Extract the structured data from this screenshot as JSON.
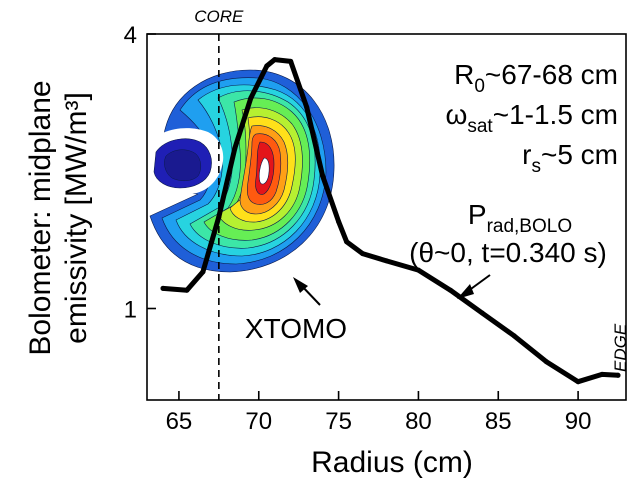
{
  "chart_data": {
    "type": "line",
    "title": "",
    "xlabel": "Radius (cm)",
    "ylabel_line1": "Bolometer: midplane",
    "ylabel_line2": "emissivity [MW/m³]",
    "xlim": [
      63,
      93
    ],
    "ylim": [
      0,
      4
    ],
    "x_ticks": [
      65,
      70,
      75,
      80,
      85,
      90
    ],
    "x_tick_labels": [
      "65",
      "70",
      "75",
      "80",
      "85",
      "90"
    ],
    "y_ticks": [
      1,
      4
    ],
    "y_tick_labels": [
      "1",
      "4"
    ],
    "grid": false,
    "core_x": 67.5,
    "core_label": "CORE",
    "edge_label": "EDGE",
    "series": [
      {
        "name": "P_rad,BOLO",
        "x": [
          64.0,
          65.5,
          66.5,
          67.5,
          68.5,
          69.5,
          70.5,
          71.0,
          72.0,
          73.0,
          74.0,
          75.0,
          75.5,
          76.5,
          78.0,
          80.0,
          82.0,
          84.0,
          86.0,
          88.0,
          90.0,
          91.5,
          92.5
        ],
        "y": [
          1.22,
          1.2,
          1.4,
          2.0,
          2.75,
          3.3,
          3.65,
          3.72,
          3.7,
          3.2,
          2.45,
          1.95,
          1.73,
          1.6,
          1.52,
          1.42,
          1.2,
          0.95,
          0.7,
          0.42,
          0.2,
          0.28,
          0.27
        ]
      }
    ],
    "annotations": {
      "r0_main": "R",
      "r0_sub": "0",
      "r0_rest": "~67-68 cm",
      "omega_main": "ω",
      "omega_sub": "sat",
      "omega_rest": "~1-1.5 cm",
      "rs_main": "r",
      "rs_sub": "s",
      "rs_rest": "~5 cm",
      "prad_main": "P",
      "prad_sub": "rad,BOLO",
      "prad_cond": "(θ~0, t=0.340 s)",
      "xtomo": "XTOMO"
    },
    "colors": {
      "line": "#000000",
      "contour_levels": [
        "#1f1fb5",
        "#1e5fe0",
        "#1f9ff0",
        "#27d3e0",
        "#3ce6a7",
        "#66ee55",
        "#b6f031",
        "#ffe01a",
        "#ff9f16",
        "#ff5a10",
        "#e3141a",
        "#ffffff"
      ]
    }
  }
}
